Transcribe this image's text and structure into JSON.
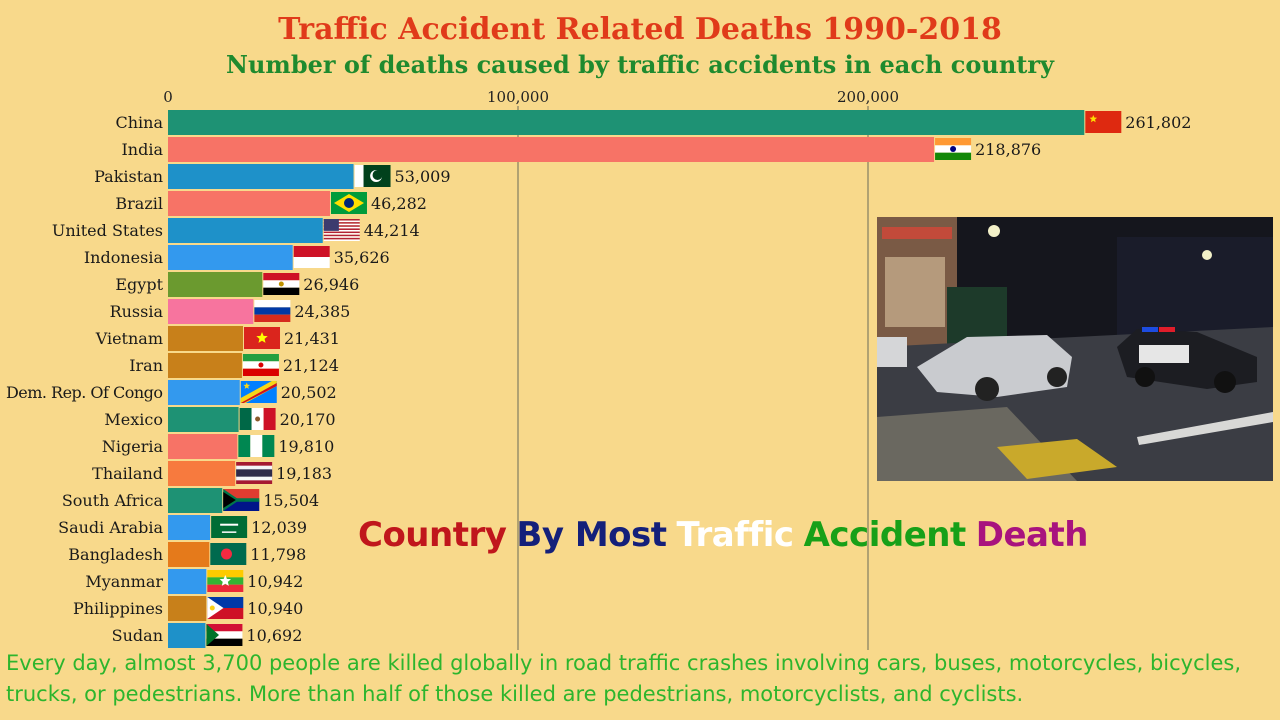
{
  "title": "Traffic Accident Related Deaths 1990-2018",
  "subtitle": "Number of deaths caused by traffic accidents in each country",
  "slogan": [
    {
      "text": "Country",
      "color": "#c0161c"
    },
    {
      "text": "By Most",
      "color": "#14207a"
    },
    {
      "text": "Traffic",
      "color": "#ffffff"
    },
    {
      "text": "Accident",
      "color": "#18a018"
    },
    {
      "text": "Death",
      "color": "#a8137e"
    }
  ],
  "footer_text": "Every day, almost 3,700 people are killed globally in road traffic crashes involving cars, buses, motorcycles, bicycles, trucks, or pedestrians. More than half of those killed are pedestrians, motorcyclists, and cyclists.",
  "photo_icon": "car-crash-photo",
  "chart_data": {
    "type": "bar",
    "orientation": "horizontal",
    "title": "Traffic Accident Related Deaths 1990-2018",
    "subtitle": "Number of deaths caused by traffic accidents in each country",
    "xlim": [
      0,
      262000
    ],
    "x_ticks": [
      0,
      100000,
      200000
    ],
    "x_tick_labels": [
      "0",
      "100,000",
      "200,000"
    ],
    "axis_position": "top",
    "grid": true,
    "categories": [
      "China",
      "India",
      "Pakistan",
      "Brazil",
      "United States",
      "Indonesia",
      "Egypt",
      "Russia",
      "Vietnam",
      "Iran",
      "Dem. Rep. Of Congo",
      "Mexico",
      "Nigeria",
      "Thailand",
      "South Africa",
      "Saudi Arabia",
      "Bangladesh",
      "Myanmar",
      "Philippines",
      "Sudan"
    ],
    "values": [
      261802,
      218876,
      53009,
      46282,
      44214,
      35626,
      26946,
      24385,
      21431,
      21124,
      20502,
      20170,
      19810,
      19183,
      15504,
      12039,
      11798,
      10942,
      10940,
      10692
    ],
    "value_labels": [
      "261,802",
      "218,876",
      "53,009",
      "46,282",
      "44,214",
      "35,626",
      "26,946",
      "24,385",
      "21,431",
      "21,124",
      "20,502",
      "20,170",
      "19,810",
      "19,183",
      "15,504",
      "12,039",
      "11,798",
      "10,942",
      "10,940",
      "10,692"
    ],
    "bar_colors": [
      "#1e9274",
      "#f77366",
      "#1e91c9",
      "#f77366",
      "#1e91c9",
      "#3399ee",
      "#6b9a2f",
      "#f7749e",
      "#c8801a",
      "#c8801a",
      "#3399ee",
      "#1e9274",
      "#f77366",
      "#f77a3e",
      "#1e9274",
      "#3399ee",
      "#e57a1b",
      "#3399ee",
      "#c8801a",
      "#1e91c9"
    ],
    "flag_icons": [
      "flag-china",
      "flag-india",
      "flag-pakistan",
      "flag-brazil",
      "flag-united-states",
      "flag-indonesia",
      "flag-egypt",
      "flag-russia",
      "flag-vietnam",
      "flag-iran",
      "flag-dr-congo",
      "flag-mexico",
      "flag-nigeria",
      "flag-thailand",
      "flag-south-africa",
      "flag-saudi-arabia",
      "flag-bangladesh",
      "flag-myanmar",
      "flag-philippines",
      "flag-sudan"
    ]
  }
}
